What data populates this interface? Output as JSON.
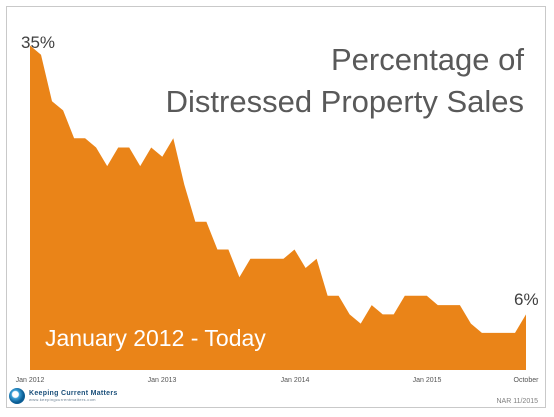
{
  "chart_data": {
    "type": "area",
    "title": [
      "Percentage of",
      "Distressed Property Sales"
    ],
    "overlay_text": "January 2012 - Today",
    "xlabel": "",
    "ylabel": "",
    "ylim": [
      0,
      37
    ],
    "color": "#ea8418",
    "x_ticks": [
      "Jan 2012",
      "Jan 2013",
      "Jan 2014",
      "Jan 2015",
      "October"
    ],
    "x_tick_indices": [
      0,
      12,
      24,
      36,
      45
    ],
    "start_label": "35%",
    "end_label": "6%",
    "values": [
      35,
      34,
      29,
      28,
      25,
      25,
      24,
      22,
      24,
      24,
      22,
      24,
      23,
      25,
      20,
      16,
      16,
      13,
      13,
      10,
      12,
      12,
      12,
      12,
      13,
      11,
      12,
      8,
      8,
      6,
      5,
      7,
      6,
      6,
      8,
      8,
      8,
      7,
      7,
      7,
      5,
      4,
      4,
      4,
      4,
      6
    ]
  },
  "source": "NAR 11/2015",
  "logo": {
    "name": "Keeping Current Matters",
    "url": "www.keepingcurrentmatters.com"
  }
}
